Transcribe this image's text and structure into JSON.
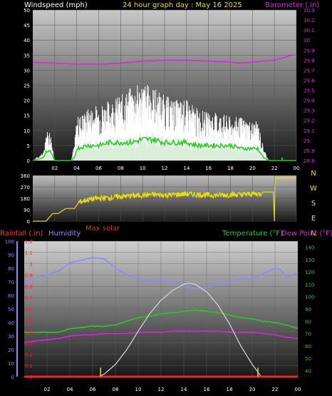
{
  "header": {
    "wind_label": "Windspeed (mph)",
    "title": "24 hour graph day : May 16 2025",
    "baro_label": "Barometer (.in)"
  },
  "bottom_labels": {
    "rain": "Rainfall (.in)",
    "humidity": "Humidity",
    "solar": "Max solar",
    "temp": "Temperature (°F)",
    "dew": "Dew Point (°F)"
  },
  "colors": {
    "wind_gust": "#ffffff",
    "wind_avg": "#22cc22",
    "wind_light": "#cfe8cf",
    "barometer": "#dd22dd",
    "direction": "#e8e000",
    "temperature": "#22cc22",
    "dewpoint": "#dd22dd",
    "humidity": "#8a8aff",
    "solar": "#d8d8d8",
    "rain": "#ff2020",
    "header_yellow": "#e8e000",
    "rain_label": "#ff3333",
    "humidity_label": "#8a8aff",
    "solar_label": "#cc3333",
    "temp_label": "#22cc22",
    "dew_label": "#dd22dd"
  },
  "chart_data": [
    {
      "type": "area",
      "name": "wind",
      "x_ticks": [
        "02",
        "04",
        "06",
        "08",
        "10",
        "12",
        "14",
        "16",
        "18",
        "20",
        "22",
        "00"
      ],
      "y_left_ticks": [
        "0",
        "5",
        "10",
        "15",
        "20",
        "25",
        "30",
        "35",
        "40",
        "45",
        "50"
      ],
      "y_right_ticks": [
        "28.8",
        "28.9",
        "29",
        "29.1",
        "29.2",
        "29.3",
        "29.4",
        "29.5",
        "29.6",
        "29.7",
        "29.8",
        "29.9",
        "30",
        "30.1",
        "30.2",
        "30.3"
      ],
      "ylim_left": [
        0,
        50
      ],
      "ylim_right": [
        28.8,
        30.3
      ],
      "xlim": [
        0,
        24
      ],
      "series": [
        {
          "name": "gust",
          "x": [
            0,
            1,
            1.2,
            1.6,
            2,
            3.5,
            3.8,
            4,
            5,
            6,
            7,
            8,
            9,
            10,
            11,
            12,
            13,
            14,
            15,
            16,
            17,
            18,
            19,
            20,
            20.5,
            21,
            21.5,
            22,
            23,
            24
          ],
          "y": [
            0,
            2,
            7,
            7,
            0,
            0,
            4,
            10,
            12,
            13,
            14,
            15,
            17,
            18,
            17,
            15,
            14,
            14,
            12,
            11,
            11,
            10,
            10,
            9,
            9,
            3,
            0,
            0,
            0,
            0
          ]
        },
        {
          "name": "average",
          "x": [
            0,
            1,
            1.2,
            1.6,
            2,
            3.5,
            3.8,
            4,
            5,
            6,
            7,
            8,
            9,
            10,
            11,
            12,
            13,
            14,
            15,
            16,
            17,
            18,
            19,
            20,
            20.5,
            21,
            21.5,
            22,
            23,
            24
          ],
          "y": [
            0,
            1,
            3,
            3,
            0,
            0,
            1,
            4,
            5,
            5,
            6,
            6,
            6,
            7,
            7,
            6,
            6,
            6,
            5,
            5,
            5,
            5,
            4,
            4,
            4,
            1,
            0,
            0,
            0,
            0
          ]
        },
        {
          "name": "barometer",
          "x": [
            0,
            2,
            4,
            6,
            8,
            10,
            12,
            14,
            16,
            18,
            19,
            20,
            21,
            22,
            23,
            23.5,
            24
          ],
          "y": [
            29.78,
            29.77,
            29.76,
            29.76,
            29.77,
            29.79,
            29.8,
            29.8,
            29.79,
            29.78,
            29.77,
            29.78,
            29.79,
            29.8,
            29.83,
            29.85,
            29.85
          ]
        }
      ],
      "marker": {
        "x": 22.7,
        "y": 1
      }
    },
    {
      "type": "line",
      "name": "wind_direction",
      "y_left_ticks": [
        "0",
        "90",
        "180",
        "270",
        "360"
      ],
      "y_right_ticks": [
        "N",
        "W",
        "S",
        "E",
        "N"
      ],
      "ylim": [
        0,
        360
      ],
      "xlim": [
        0,
        24
      ],
      "series": [
        {
          "name": "direction",
          "x": [
            0,
            1.2,
            1.8,
            2.3,
            3,
            3.8,
            4.2,
            5,
            6,
            7,
            8,
            9,
            10,
            11,
            12,
            13,
            14,
            15,
            16,
            17,
            18,
            19,
            20,
            20.8,
            21,
            21.9,
            22.0,
            22.05,
            22.1,
            24
          ],
          "y": [
            0,
            0,
            60,
            60,
            100,
            100,
            150,
            170,
            180,
            185,
            195,
            200,
            205,
            210,
            205,
            210,
            215,
            210,
            205,
            205,
            210,
            210,
            215,
            215,
            230,
            230,
            0,
            330,
            340,
            340
          ]
        }
      ]
    },
    {
      "type": "line",
      "name": "weather",
      "x_ticks": [
        "02",
        "04",
        "06",
        "08",
        "10",
        "12",
        "14",
        "16",
        "18",
        "20",
        "22",
        "00"
      ],
      "y_humidity_ticks": [
        "0",
        "10",
        "20",
        "30",
        "40",
        "50",
        "60",
        "70",
        "80",
        "90",
        "100"
      ],
      "y_rain_ticks": [
        "0",
        "0.1",
        "0.2",
        "0.3",
        "0.4",
        "0.5",
        "0.6",
        "0.7",
        "0.8",
        "0.9",
        "1",
        "1.1",
        "1.2"
      ],
      "y_temp_ticks": [
        "40",
        "50",
        "60",
        "70",
        "80",
        "90",
        "100",
        "110",
        "120",
        "130",
        "140"
      ],
      "ylim_humidity": [
        0,
        100
      ],
      "ylim_rain": [
        0,
        1.2
      ],
      "ylim_temp": [
        35,
        145
      ],
      "xlim": [
        0,
        24
      ],
      "series": [
        {
          "name": "humidity",
          "x": [
            0,
            1,
            2,
            3,
            4,
            5,
            6,
            7,
            7.5,
            8,
            9,
            10,
            11,
            12,
            13,
            14,
            15,
            16,
            17,
            18,
            19,
            20,
            21,
            22,
            22.5,
            23,
            24
          ],
          "y": [
            70,
            73,
            75,
            78,
            84,
            86,
            88,
            87,
            84,
            80,
            75,
            72,
            71,
            71,
            70,
            67,
            65,
            66,
            68,
            70,
            72,
            72,
            76,
            80,
            79,
            73,
            77
          ]
        },
        {
          "name": "temperature",
          "x": [
            0,
            1,
            2,
            3,
            4,
            5,
            6,
            7,
            8,
            9,
            10,
            11,
            12,
            13,
            14,
            15,
            16,
            17,
            18,
            19,
            20,
            21,
            22,
            23,
            24
          ],
          "y": [
            71,
            71,
            71,
            71,
            74,
            75,
            76,
            76,
            77,
            80,
            83,
            84,
            86,
            87,
            88,
            89,
            88,
            87,
            85,
            83,
            82,
            80,
            79,
            77,
            74
          ]
        },
        {
          "name": "dewpoint",
          "x": [
            0,
            1,
            2,
            3,
            4,
            5,
            6,
            7,
            8,
            9,
            10,
            11,
            12,
            13,
            14,
            15,
            16,
            17,
            18,
            19,
            20,
            21,
            22,
            23,
            24
          ],
          "y": [
            63,
            64,
            65,
            66,
            68,
            69,
            69,
            70,
            70,
            70,
            71,
            71,
            71,
            72,
            72,
            72,
            72,
            72,
            71,
            71,
            71,
            70,
            69,
            67,
            66
          ]
        },
        {
          "name": "max_solar",
          "x": [
            6.5,
            7,
            8,
            9,
            10,
            11,
            12,
            13,
            14,
            14.5,
            15,
            16,
            17,
            18,
            19,
            20,
            20.8
          ],
          "y": [
            35,
            37,
            45,
            57,
            72,
            86,
            97,
            105,
            110,
            111,
            110,
            104,
            93,
            78,
            60,
            45,
            35
          ]
        },
        {
          "name": "rainfall",
          "x": [
            0,
            24
          ],
          "y": [
            0,
            0
          ]
        }
      ],
      "markers": [
        {
          "x": 6.7,
          "y": 0.08
        },
        {
          "x": 20.5,
          "y": 0.08
        }
      ]
    }
  ]
}
